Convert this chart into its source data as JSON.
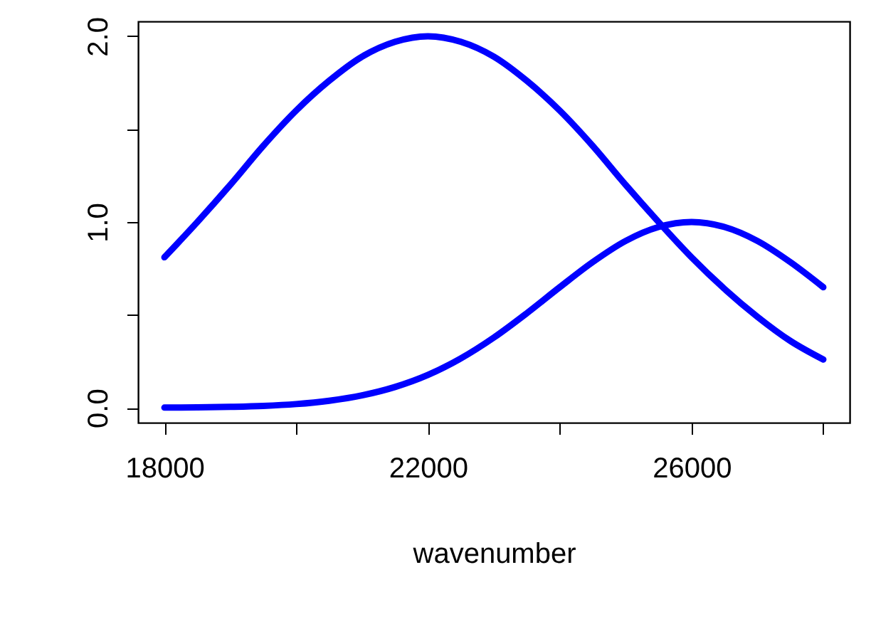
{
  "chart_data": {
    "type": "line",
    "xlabel": "wavenumber",
    "x": [
      18000,
      18500,
      19000,
      19500,
      20000,
      20500,
      21000,
      21500,
      22000,
      22500,
      23000,
      23500,
      24000,
      24500,
      25000,
      25500,
      26000,
      26500,
      27000,
      27500,
      28000
    ],
    "series": [
      {
        "color": "#0000ff",
        "values": [
          0.81,
          1.0,
          1.2,
          1.41,
          1.6,
          1.76,
          1.89,
          1.97,
          2.0,
          1.97,
          1.89,
          1.76,
          1.6,
          1.41,
          1.2,
          1.0,
          0.81,
          0.64,
          0.49,
          0.36,
          0.26
        ]
      },
      {
        "color": "#0000ff",
        "values": [
          0.001,
          0.002,
          0.005,
          0.01,
          0.02,
          0.038,
          0.067,
          0.112,
          0.177,
          0.266,
          0.378,
          0.509,
          0.649,
          0.784,
          0.898,
          0.973,
          1.0,
          0.973,
          0.898,
          0.784,
          0.649
        ]
      }
    ],
    "xlim": [
      17600,
      28400
    ],
    "ylim": [
      -0.08,
      2.08
    ],
    "xticks": [
      18000,
      {
        "value": 20000,
        "label": null
      },
      22000,
      {
        "value": 24000,
        "label": null
      },
      26000,
      {
        "value": 28000,
        "label": null
      }
    ],
    "yticks": [
      {
        "value": 0,
        "label": "0.0"
      },
      {
        "value": 0.5,
        "label": null
      },
      {
        "value": 1,
        "label": "1.0"
      },
      {
        "value": 1.5,
        "label": null
      },
      {
        "value": 2,
        "label": "2.0"
      }
    ],
    "grid": false
  }
}
